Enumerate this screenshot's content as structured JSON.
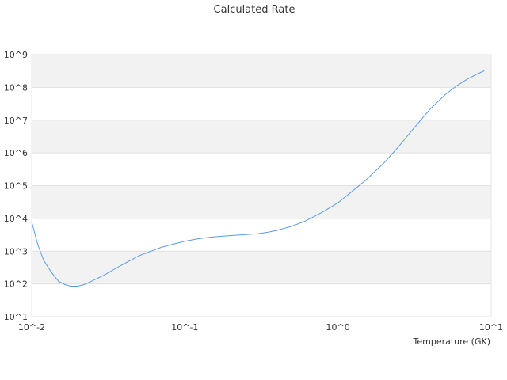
{
  "chart_data": {
    "type": "line",
    "title": "Calculated Rate",
    "xlabel": "Temperature (GK)",
    "ylabel": "",
    "x_scale": "log",
    "y_scale": "log",
    "xlim": [
      0.01,
      10
    ],
    "ylim": [
      10,
      1000000000
    ],
    "x_ticks": [
      "10^-2",
      "10^-1",
      "10^0",
      "10^1"
    ],
    "y_ticks": [
      "10^1",
      "10^2",
      "10^3",
      "10^4",
      "10^5",
      "10^6",
      "10^7",
      "10^8",
      "10^9"
    ],
    "grid": true,
    "legend": "none",
    "series_color": "#5a9be6",
    "band_color": "#f2f2f2",
    "series": [
      {
        "x": [
          0.01,
          0.011,
          0.012,
          0.0135,
          0.015,
          0.0165,
          0.018,
          0.02,
          0.022,
          0.025,
          0.03,
          0.035,
          0.04,
          0.05,
          0.06,
          0.07,
          0.08,
          0.1,
          0.12,
          0.15,
          0.2,
          0.25,
          0.3,
          0.35,
          0.4,
          0.5,
          0.6,
          0.7,
          0.8,
          1.0,
          1.2,
          1.5,
          2.0,
          2.5,
          3.0,
          4.0,
          5.0,
          6.0,
          7.0,
          8.0,
          9.0
        ],
        "y": [
          7800,
          1500,
          520,
          220,
          120,
          95,
          85,
          85,
          95,
          125,
          190,
          290,
          410,
          720,
          1000,
          1300,
          1550,
          2000,
          2350,
          2700,
          3000,
          3200,
          3400,
          3800,
          4300,
          5800,
          8000,
          11500,
          16000,
          30000,
          60000,
          140000,
          500000,
          1600000,
          4500000,
          22000000,
          60000000,
          115000000,
          180000000,
          250000000,
          320000000
        ]
      }
    ]
  }
}
